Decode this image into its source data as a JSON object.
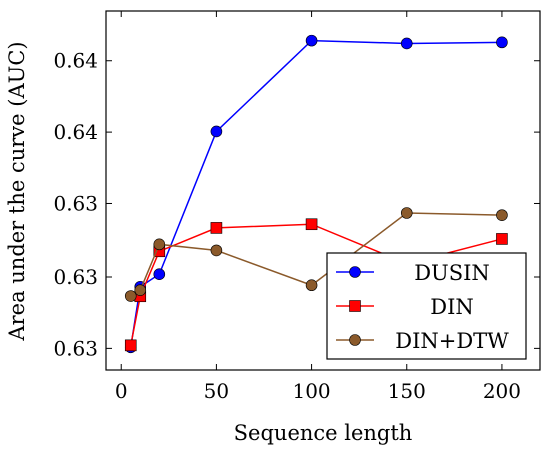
{
  "chart_data": {
    "type": "line",
    "title": "",
    "xlabel": "Sequence length",
    "ylabel": "Area under the curve (AUC)",
    "xlim": [
      -8,
      220
    ],
    "ylim": [
      0.629,
      0.6456
    ],
    "x_ticks": [
      {
        "value": 0,
        "label": "0"
      },
      {
        "value": 50,
        "label": "50"
      },
      {
        "value": 100,
        "label": "100"
      },
      {
        "value": 150,
        "label": "150"
      },
      {
        "value": 200,
        "label": "200"
      }
    ],
    "y_ticks": [
      {
        "value": 0.63,
        "label": "0.63"
      },
      {
        "value": 0.6333,
        "label": "0.63"
      },
      {
        "value": 0.6367,
        "label": "0.63"
      },
      {
        "value": 0.64,
        "label": "0.64"
      },
      {
        "value": 0.6433,
        "label": "0.64"
      }
    ],
    "grid": false,
    "legend_position": "bottom-right",
    "series": [
      {
        "name": "DUSIN",
        "color": "#0000ff",
        "marker": "circle",
        "x": [
          5,
          10,
          20,
          50,
          100,
          150,
          200
        ],
        "values": [
          0.63005,
          0.63285,
          0.63343,
          0.64003,
          0.64423,
          0.6441,
          0.64415
        ]
      },
      {
        "name": "DIN",
        "color": "#ff0000",
        "marker": "square",
        "x": [
          5,
          10,
          20,
          50,
          100,
          150,
          200
        ],
        "values": [
          0.63014,
          0.63241,
          0.63449,
          0.63557,
          0.63574,
          0.63392,
          0.63506
        ]
      },
      {
        "name": "DIN+DTW",
        "color": "#8b5a2b",
        "marker": "circle",
        "x": [
          5,
          10,
          20,
          50,
          100,
          150,
          200
        ],
        "values": [
          0.63242,
          0.63269,
          0.63481,
          0.63453,
          0.63292,
          0.63626,
          0.63616
        ]
      }
    ]
  }
}
